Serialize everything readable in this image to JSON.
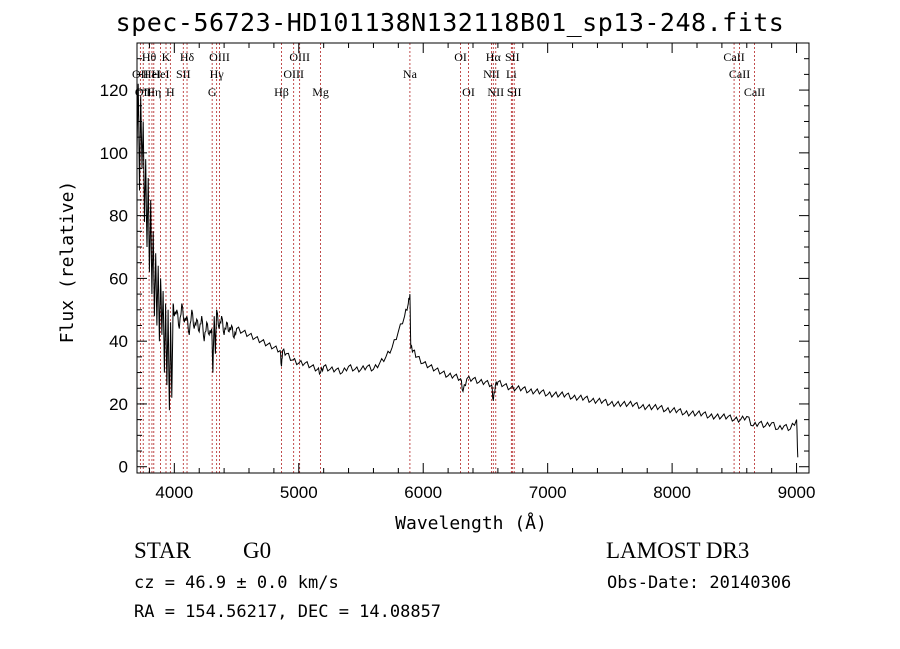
{
  "header": {
    "title": "spec-56723-HD101138N132118B01_sp13-248.fits"
  },
  "info": {
    "class_label": "STAR",
    "class_value": "G0",
    "survey": "LAMOST DR3",
    "cz": "cz = 46.9 ± 0.0 km/s",
    "obs_date": "Obs-Date: 20140306",
    "radec": "RA = 154.56217, DEC =  14.08857"
  },
  "colors": {
    "spectrum": "#000000",
    "line_marker": "#b22222",
    "axis": "#000000"
  },
  "chart_data": {
    "type": "line",
    "title": "spec-56723-HD101138N132118B01_sp13-248.fits",
    "xlabel": "Wavelength (Å)",
    "ylabel": "Flux (relative)",
    "xlim": [
      3700,
      9100
    ],
    "ylim": [
      -2,
      135
    ],
    "x_ticks": [
      4000,
      5000,
      6000,
      7000,
      8000,
      9000
    ],
    "x_tick_labels": [
      "4000",
      "5000",
      "6000",
      "7000",
      "8000",
      "9000"
    ],
    "y_ticks": [
      0,
      20,
      40,
      60,
      80,
      100,
      120
    ],
    "y_tick_labels": [
      "0",
      "20",
      "40",
      "60",
      "80",
      "100",
      "120"
    ],
    "series": [
      {
        "name": "flux",
        "x": [
          3700,
          3710,
          3720,
          3730,
          3740,
          3750,
          3760,
          3770,
          3780,
          3790,
          3800,
          3810,
          3820,
          3830,
          3840,
          3850,
          3860,
          3870,
          3880,
          3890,
          3900,
          3910,
          3920,
          3930,
          3940,
          3950,
          3960,
          3970,
          3980,
          3990,
          4000,
          4020,
          4040,
          4060,
          4080,
          4100,
          4120,
          4140,
          4160,
          4180,
          4200,
          4220,
          4240,
          4260,
          4280,
          4300,
          4310,
          4320,
          4330,
          4340,
          4360,
          4380,
          4400,
          4420,
          4440,
          4460,
          4480,
          4500,
          4550,
          4600,
          4650,
          4700,
          4750,
          4800,
          4850,
          4861,
          4870,
          4900,
          4950,
          5000,
          5050,
          5100,
          5150,
          5175,
          5200,
          5250,
          5300,
          5350,
          5400,
          5450,
          5500,
          5550,
          5600,
          5650,
          5700,
          5750,
          5800,
          5850,
          5880,
          5893,
          5900,
          5920,
          5950,
          6000,
          6050,
          6100,
          6150,
          6200,
          6250,
          6300,
          6320,
          6350,
          6400,
          6450,
          6500,
          6550,
          6563,
          6580,
          6600,
          6650,
          6700,
          6750,
          6800,
          6850,
          6900,
          6950,
          7000,
          7050,
          7100,
          7150,
          7200,
          7250,
          7300,
          7350,
          7400,
          7450,
          7500,
          7550,
          7600,
          7650,
          7700,
          7750,
          7800,
          7850,
          7900,
          7950,
          8000,
          8050,
          8100,
          8150,
          8200,
          8250,
          8300,
          8350,
          8400,
          8450,
          8500,
          8550,
          8600,
          8650,
          8700,
          8750,
          8800,
          8850,
          8900,
          8950,
          9000,
          9010
        ],
        "values": [
          100,
          122,
          88,
          118,
          95,
          110,
          78,
          98,
          70,
          92,
          62,
          85,
          55,
          75,
          48,
          68,
          45,
          64,
          40,
          60,
          42,
          56,
          30,
          52,
          26,
          50,
          18,
          46,
          22,
          52,
          48,
          50,
          44,
          52,
          46,
          48,
          42,
          50,
          44,
          47,
          43,
          48,
          40,
          46,
          42,
          44,
          30,
          48,
          36,
          50,
          44,
          48,
          42,
          46,
          43,
          45,
          41,
          44,
          43,
          42,
          41,
          40,
          39,
          38,
          37,
          32,
          37,
          36,
          34,
          33,
          33,
          32,
          31,
          30,
          32,
          31,
          31,
          30,
          32,
          31,
          31,
          32,
          31,
          33,
          35,
          38,
          43,
          48,
          52,
          55,
          38,
          37,
          35,
          33,
          32,
          31,
          30,
          29,
          29,
          28,
          24,
          28,
          28,
          27,
          27,
          26,
          21,
          26,
          27,
          26,
          25,
          25,
          25,
          24,
          24,
          24,
          23,
          23,
          23,
          23,
          22,
          22,
          22,
          21,
          21,
          21,
          20,
          20,
          20,
          20,
          20,
          19,
          19,
          19,
          19,
          18,
          18,
          18,
          17,
          17,
          17,
          17,
          16,
          16,
          16,
          16,
          15,
          15,
          16,
          13,
          14,
          13,
          14,
          12,
          13,
          12,
          15,
          3
        ]
      }
    ],
    "line_markers": [
      {
        "wavelength": 3727,
        "label": "OII",
        "row": 2
      },
      {
        "wavelength": 3750,
        "label": "OII",
        "row": 3
      },
      {
        "wavelength": 3797,
        "label": "Hθ",
        "row": 1
      },
      {
        "wavelength": 3820,
        "label": "HeI",
        "row": 2
      },
      {
        "wavelength": 3835,
        "label": "Hη",
        "row": 3
      },
      {
        "wavelength": 3889,
        "label": "HeI",
        "row": 2
      },
      {
        "wavelength": 3933,
        "label": "K",
        "row": 1
      },
      {
        "wavelength": 3968,
        "label": "H",
        "row": 3
      },
      {
        "wavelength": 4072,
        "label": "SII",
        "row": 2
      },
      {
        "wavelength": 4102,
        "label": "Hδ",
        "row": 1
      },
      {
        "wavelength": 4304,
        "label": "G",
        "row": 3
      },
      {
        "wavelength": 4340,
        "label": "Hγ",
        "row": 2
      },
      {
        "wavelength": 4363,
        "label": "OIII",
        "row": 1
      },
      {
        "wavelength": 4861,
        "label": "Hβ",
        "row": 3
      },
      {
        "wavelength": 4959,
        "label": "OIII",
        "row": 2
      },
      {
        "wavelength": 5007,
        "label": "OIII",
        "row": 1
      },
      {
        "wavelength": 5175,
        "label": "Mg",
        "row": 3
      },
      {
        "wavelength": 5893,
        "label": "Na",
        "row": 2
      },
      {
        "wavelength": 6300,
        "label": "OI",
        "row": 1
      },
      {
        "wavelength": 6364,
        "label": "OI",
        "row": 3
      },
      {
        "wavelength": 6548,
        "label": "NII",
        "row": 2
      },
      {
        "wavelength": 6563,
        "label": "Hα",
        "row": 1
      },
      {
        "wavelength": 6583,
        "label": "NII",
        "row": 3
      },
      {
        "wavelength": 6708,
        "label": "Li",
        "row": 2
      },
      {
        "wavelength": 6716,
        "label": "SII",
        "row": 1
      },
      {
        "wavelength": 6731,
        "label": "SII",
        "row": 3
      },
      {
        "wavelength": 8498,
        "label": "CaII",
        "row": 1
      },
      {
        "wavelength": 8542,
        "label": "CaII",
        "row": 2
      },
      {
        "wavelength": 8662,
        "label": "CaII",
        "row": 3
      }
    ]
  }
}
